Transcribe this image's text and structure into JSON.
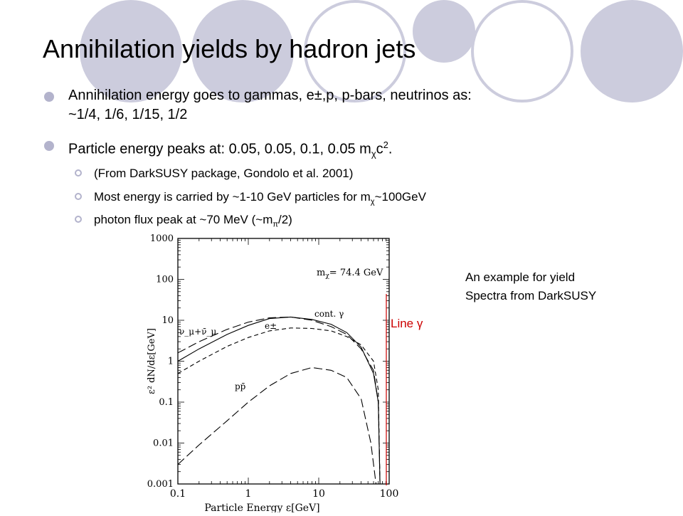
{
  "slide": {
    "title": "Annihilation yields by hadron jets",
    "bullets": [
      {
        "text_line1": "Annihilation energy goes to gammas, e±,p, p-bars, neutrinos as:",
        "text_line2": "~1/4, 1/6, 1/15, 1/2"
      },
      {
        "text_prefix": "Particle energy peaks at: 0.05, 0.05, 0.1, 0.05 m",
        "text_sub": "χ",
        "text_mid": "c",
        "text_sup": "2",
        "text_suffix": "."
      }
    ],
    "subbullets": [
      {
        "text": "(From DarkSUSY package, Gondolo et al. 2001)"
      },
      {
        "text_prefix": "Most energy is carried by ~1-10 GeV particles for  m",
        "text_sub": "χ",
        "text_suffix": "~100GeV"
      },
      {
        "text_prefix": "photon flux peak at ~70 MeV (~m",
        "text_sub": "π",
        "text_suffix": "/2)"
      }
    ],
    "note": {
      "line1": "An example for yield",
      "line2": "Spectra from DarkSUSY"
    },
    "line_label": "Line γ",
    "colors": {
      "bullet": "#b3b3cc",
      "decoration": "#ccccdd",
      "line_gamma": "#cc0000"
    }
  },
  "chart_data": {
    "type": "line",
    "xscale": "log",
    "yscale": "log",
    "xlim": [
      0.1,
      100
    ],
    "ylim": [
      0.001,
      1000
    ],
    "xlabel": "Particle Energy ε[GeV]",
    "ylabel": "ε² dN/dε[GeV]",
    "x_ticks": [
      "0.1",
      "1",
      "10",
      "100"
    ],
    "y_ticks": [
      "0.001",
      "0.01",
      "0.1",
      "1",
      "10",
      "100",
      "1000"
    ],
    "annotation": "m",
    "annotation_sub": "χ",
    "annotation_value": "= 74.4 GeV",
    "series": [
      {
        "name": "cont. γ",
        "style": "solid",
        "x": [
          0.1,
          0.2,
          0.5,
          1,
          2,
          4,
          8,
          15,
          25,
          40,
          60,
          70,
          74
        ],
        "y": [
          1.0,
          2.0,
          4.5,
          7.5,
          11,
          12,
          10.5,
          8,
          5,
          2.2,
          0.5,
          0.1,
          0.001
        ]
      },
      {
        "name": "ν_μ+ν̄_μ",
        "style": "longdash",
        "x": [
          0.1,
          0.2,
          0.5,
          1,
          2,
          4,
          8,
          15,
          25,
          40,
          60,
          70,
          74
        ],
        "y": [
          1.6,
          3,
          6,
          9,
          11.5,
          12,
          10,
          7,
          4.5,
          2,
          0.6,
          0.1,
          0.001
        ]
      },
      {
        "name": "e±",
        "style": "dash",
        "x": [
          0.1,
          0.2,
          0.5,
          1,
          2,
          4,
          8,
          15,
          25,
          40,
          60,
          70,
          74
        ],
        "y": [
          0.5,
          1.0,
          2.3,
          3.8,
          5.5,
          6.5,
          6.3,
          5.5,
          4.0,
          2.5,
          1.0,
          0.2,
          0.001
        ]
      },
      {
        "name": "pp̄",
        "style": "longdash",
        "x": [
          0.1,
          0.2,
          0.5,
          1,
          2,
          4,
          8,
          15,
          25,
          40,
          55,
          65
        ],
        "y": [
          0.003,
          0.009,
          0.035,
          0.1,
          0.25,
          0.5,
          0.7,
          0.6,
          0.4,
          0.12,
          0.01,
          0.001
        ]
      }
    ]
  }
}
